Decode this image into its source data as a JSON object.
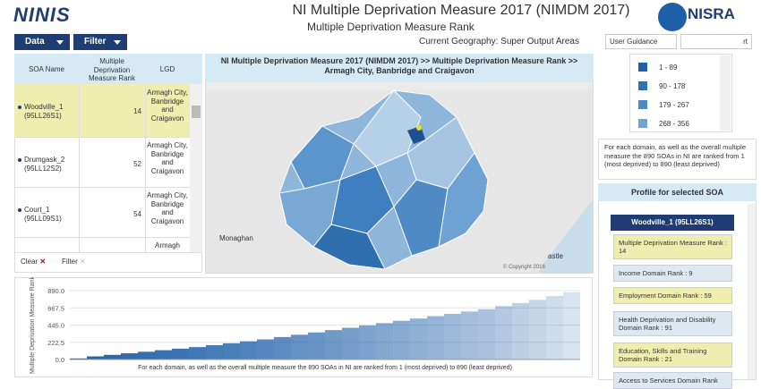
{
  "header": {
    "logo": "NINIS",
    "title": "NI Multiple Deprivation Measure 2017 (NIMDM 2017)",
    "subtitle": "Multiple Deprivation Measure Rank",
    "geography": "Current Geography: Super Output Areas",
    "agency": "NISRA"
  },
  "toolbar": {
    "data": "Data",
    "filter": "Filter",
    "guidance": "User Guidance",
    "export": "rt"
  },
  "table": {
    "columns": [
      "SOA Name",
      "Multiple Deprivation Measure Rank",
      "LGD"
    ],
    "rows": [
      [
        "Woodville_1 (95LL26S1)",
        "14",
        "Armagh City, Banbridge and Craigavon"
      ],
      [
        "Drumgask_2 (95LL12S2)",
        "52",
        "Armagh City, Banbridge and Craigavon"
      ],
      [
        "Court_1 (95LL09S1)",
        "54",
        "Armagh City, Banbridge and Craigavon"
      ],
      [
        "",
        "",
        "Armagh"
      ]
    ],
    "clear": "Clear",
    "filter": "Filter"
  },
  "map": {
    "title": "NI Multiple Deprivation Measure 2017 (NIMDM 2017) >> Multiple Deprivation Measure Rank >> Armagh City, Banbridge and Craigavon",
    "place1": "Monaghan",
    "place2": "astle",
    "copyright": "© Copyright 2016"
  },
  "legend": {
    "items": [
      {
        "label": "1 - 89",
        "color": "#1f5fa8"
      },
      {
        "label": "90 - 178",
        "color": "#2f72b8"
      },
      {
        "label": "179 - 267",
        "color": "#4a8ac6"
      },
      {
        "label": "268 - 356",
        "color": "#6fa3d3"
      }
    ]
  },
  "note": "For each domain, as well as the overall multiple measure the 890 SOAs in NI are ranked from 1 (most deprived) to 890 (least deprived)",
  "profile": {
    "title": "Profile for selected SOA",
    "selected": "Woodville_1 (95LL26S1)",
    "items": [
      "Multiple Deprivation Measure Rank : 14",
      "Income Domain Rank : 9",
      "Employment Domain Rank : 59",
      "Health Deprivation and Disability Domain Rank : 91",
      "Education, Skills and Training Domain Rank : 21",
      "Access to Services Domain Rank"
    ]
  },
  "chart": {
    "type": "bar",
    "ylabel": "Multiple Deprivation Measure Rank",
    "caption": "For each domain, as well as the overall multiple measure the 890 SOAs in NI are ranked from 1 (most deprived) to 890 (least deprived)",
    "ylim": [
      0,
      890
    ],
    "yticks": [
      {
        "value": 0,
        "label": "0.0"
      },
      {
        "value": 222.5,
        "label": "222.5"
      },
      {
        "value": 445,
        "label": "445.0"
      },
      {
        "value": 667.5,
        "label": "667.5"
      },
      {
        "value": 890,
        "label": "890.0"
      }
    ],
    "values": [
      14,
      40,
      60,
      80,
      100,
      120,
      140,
      160,
      185,
      210,
      235,
      260,
      290,
      320,
      350,
      380,
      410,
      440,
      470,
      500,
      530,
      560,
      590,
      620,
      650,
      690,
      730,
      770,
      820,
      870
    ],
    "color": "#1f5fa8"
  }
}
